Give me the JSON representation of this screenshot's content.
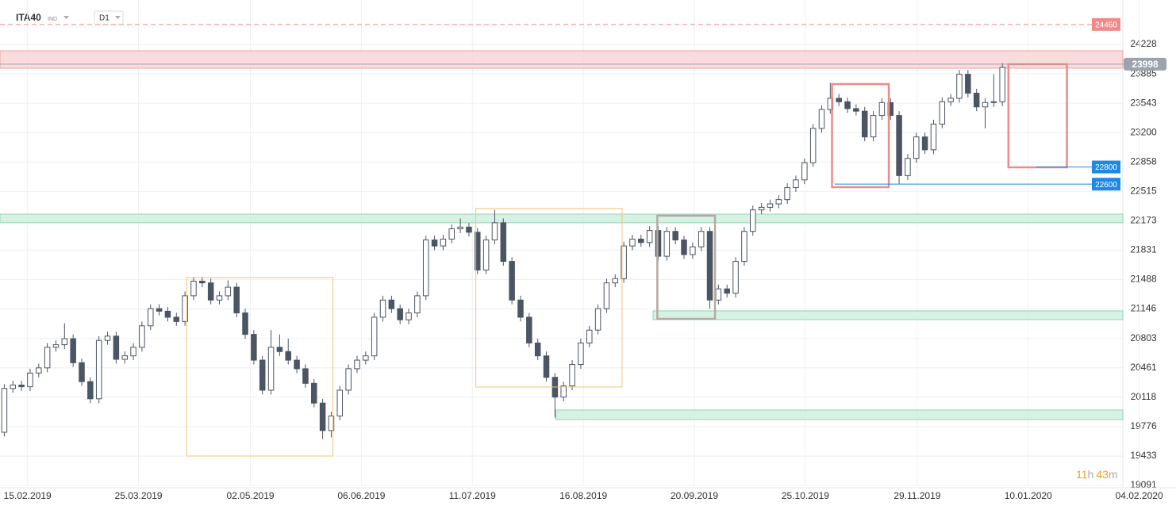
{
  "header": {
    "symbol": "ITA40",
    "market": "IND",
    "interval": "D1"
  },
  "timer": [
    "11",
    "h",
    "43",
    "m"
  ],
  "chart_data": {
    "type": "candlestick",
    "up_color": "#ffffff",
    "down_color": "#4b5563",
    "edge_color": "#4b5563",
    "grid": true,
    "xlim": [
      -0.5,
      130
    ],
    "ylim": [
      19091,
      24745
    ],
    "xticks": [
      {
        "value": 2.7,
        "label": "15.02.2019"
      },
      {
        "value": 15.6,
        "label": "25.03.2019"
      },
      {
        "value": 28.6,
        "label": "02.05.2019"
      },
      {
        "value": 41.5,
        "label": "06.06.2019"
      },
      {
        "value": 54.4,
        "label": "11.07.2019"
      },
      {
        "value": 67.3,
        "label": "16.08.2019"
      },
      {
        "value": 80.2,
        "label": "20.09.2019"
      },
      {
        "value": 93.1,
        "label": "25.10.2019"
      },
      {
        "value": 106.1,
        "label": "29.11.2019"
      },
      {
        "value": 119.0,
        "label": "10.01.2020"
      },
      {
        "value": 131.9,
        "label": "04.02.2020"
      }
    ],
    "yticks": [
      24228,
      23885,
      23543,
      23200,
      22858,
      22515,
      22173,
      21831,
      21488,
      21146,
      20803,
      20461,
      20118,
      19776,
      19433,
      19091
    ],
    "open": [
      19710,
      20220,
      20260,
      20240,
      20400,
      20460,
      20700,
      20730,
      20800,
      20520,
      20300,
      20100,
      20780,
      20830,
      20560,
      20600,
      20700,
      20950,
      21150,
      21120,
      21050,
      21000,
      21300,
      21470,
      21450,
      21250,
      21300,
      21400,
      21100,
      20850,
      20550,
      20200,
      20700,
      20650,
      20550,
      20450,
      20280,
      20050,
      19730,
      19900,
      20200,
      20450,
      20550,
      20600,
      21050,
      21250,
      21150,
      21020,
      21100,
      21300,
      21950,
      21880,
      21960,
      22080,
      22100,
      22040,
      21600,
      21950,
      22150,
      21700,
      21250,
      21050,
      20750,
      20600,
      20350,
      20120,
      20250,
      20500,
      20750,
      20900,
      21150,
      21450,
      21500,
      21880,
      21960,
      21920,
      22060,
      21760,
      22050,
      21950,
      21780,
      21870,
      22050,
      21250,
      21380,
      21330,
      21700,
      22050,
      22300,
      22330,
      22370,
      22420,
      22560,
      22650,
      22850,
      23250,
      23470,
      23600,
      23560,
      23480,
      23450,
      23150,
      23400,
      23550,
      23400,
      22700,
      22900,
      23150,
      23000,
      23300,
      23560,
      23600,
      23880,
      23660,
      23500,
      23550,
      23560
    ],
    "high": [
      20270,
      20310,
      20310,
      20450,
      20510,
      20750,
      20780,
      20980,
      20850,
      20570,
      20350,
      20830,
      20880,
      20880,
      20650,
      20750,
      21000,
      21200,
      21200,
      21170,
      21100,
      21350,
      21520,
      21520,
      21500,
      21350,
      21480,
      21450,
      21150,
      20900,
      20600,
      20900,
      20850,
      20800,
      20600,
      20500,
      20330,
      20100,
      19950,
      20250,
      20500,
      20600,
      20650,
      21100,
      21300,
      21300,
      21200,
      21150,
      21350,
      22000,
      22000,
      22010,
      22130,
      22200,
      22150,
      22090,
      22000,
      22300,
      22200,
      21750,
      21300,
      21100,
      20800,
      20650,
      20400,
      20300,
      20550,
      20800,
      20950,
      21200,
      21500,
      21550,
      21930,
      22010,
      22010,
      22110,
      22110,
      22100,
      22100,
      22000,
      21920,
      22100,
      22100,
      21430,
      21430,
      21750,
      22100,
      22350,
      22380,
      22420,
      22470,
      22610,
      22700,
      22900,
      23300,
      23520,
      23780,
      23650,
      23610,
      23530,
      23500,
      23450,
      23600,
      23600,
      23450,
      22950,
      23200,
      23200,
      23350,
      23610,
      23650,
      23930,
      23930,
      23710,
      23600,
      23880,
      24010
    ],
    "low": [
      19660,
      20170,
      20190,
      20190,
      20350,
      20410,
      20650,
      20680,
      20470,
      20250,
      20050,
      20050,
      20730,
      20510,
      20510,
      20550,
      20650,
      20900,
      21070,
      21000,
      20950,
      20950,
      21250,
      21400,
      21200,
      21200,
      21250,
      21050,
      20800,
      20500,
      20150,
      20150,
      20600,
      20500,
      20400,
      20230,
      20000,
      19630,
      19650,
      19850,
      20150,
      20400,
      20500,
      20550,
      21000,
      21100,
      20970,
      20970,
      21050,
      21250,
      21830,
      21830,
      21910,
      22030,
      21990,
      21550,
      21550,
      21900,
      21650,
      21200,
      21000,
      20700,
      20550,
      20300,
      19880,
      20070,
      20200,
      20450,
      20700,
      20850,
      21100,
      21400,
      21450,
      21830,
      21870,
      21870,
      21710,
      21710,
      21900,
      21730,
      21730,
      21820,
      21150,
      21200,
      21280,
      21280,
      21650,
      22000,
      22250,
      22280,
      22320,
      22370,
      22510,
      22600,
      22800,
      23200,
      23420,
      23510,
      23430,
      23400,
      23100,
      23100,
      23350,
      23350,
      22600,
      22650,
      22850,
      22950,
      22950,
      23250,
      23510,
      23550,
      23610,
      23450,
      23250,
      23500,
      23510
    ],
    "close": [
      20220,
      20260,
      20240,
      20400,
      20460,
      20700,
      20730,
      20800,
      20520,
      20300,
      20100,
      20780,
      20830,
      20560,
      20600,
      20700,
      20950,
      21150,
      21120,
      21050,
      21000,
      21300,
      21470,
      21450,
      21250,
      21300,
      21400,
      21100,
      20850,
      20550,
      20200,
      20700,
      20650,
      20550,
      20450,
      20280,
      20050,
      19730,
      19900,
      20200,
      20450,
      20550,
      20600,
      21050,
      21250,
      21150,
      21020,
      21100,
      21300,
      21950,
      21880,
      21960,
      22080,
      22100,
      22040,
      21600,
      21950,
      22150,
      21700,
      21250,
      21050,
      20750,
      20600,
      20350,
      20120,
      20250,
      20500,
      20750,
      20900,
      21150,
      21450,
      21500,
      21880,
      21960,
      21920,
      22060,
      21760,
      22050,
      21950,
      21780,
      21870,
      22050,
      21250,
      21380,
      21330,
      21700,
      22050,
      22300,
      22330,
      22370,
      22420,
      22560,
      22650,
      22850,
      23250,
      23470,
      23600,
      23560,
      23480,
      23450,
      23150,
      23400,
      23550,
      23400,
      22700,
      22900,
      23150,
      23000,
      23300,
      23560,
      23600,
      23880,
      23660,
      23500,
      23550,
      23560,
      23960
    ],
    "zones": [
      {
        "range": [
          23951,
          24154
        ],
        "from": -0.5,
        "color": "#f9d3d3",
        "edge": "#f2a0a0"
      },
      {
        "range": [
          22150,
          22251
        ],
        "from": -0.5,
        "color": "#cdeedd",
        "edge": "#8fd6b4"
      },
      {
        "range": [
          21022,
          21124
        ],
        "from": 75.4,
        "color": "#cdeedd",
        "edge": "#8fd6b4"
      },
      {
        "range": [
          19858,
          19969
        ],
        "from": 64.1,
        "color": "#cdeedd",
        "edge": "#8fd6b4"
      }
    ],
    "boxes": [
      {
        "x": [
          21.2,
          38.2
        ],
        "y": [
          19433,
          21512
        ],
        "color": "#f3c27a"
      },
      {
        "x": [
          54.8,
          71.8
        ],
        "y": [
          20237,
          22316
        ],
        "color": "#f3c27a"
      },
      {
        "x": [
          75.9,
          82.6
        ],
        "y": [
          21031,
          22233
        ],
        "color": "#b3a9a4"
      },
      {
        "x": [
          96.2,
          102.8
        ],
        "y": [
          22565,
          23766
        ],
        "color": "#f08a8a"
      },
      {
        "x": [
          116.7,
          123.5
        ],
        "y": [
          22796,
          23997
        ],
        "color": "#f08a8a"
      }
    ],
    "levels": [
      {
        "value": 24460,
        "from": -0.5,
        "color": "#f08a8a",
        "dashed": true
      },
      {
        "value": 23998,
        "from": -0.5,
        "color": "#9ca3af",
        "dashed": false
      },
      {
        "value": 22800,
        "from": 119.9,
        "color": "#1e88e5",
        "dashed": false
      },
      {
        "value": 22600,
        "from": 96.5,
        "color": "#1e88e5",
        "dashed": false
      }
    ]
  }
}
